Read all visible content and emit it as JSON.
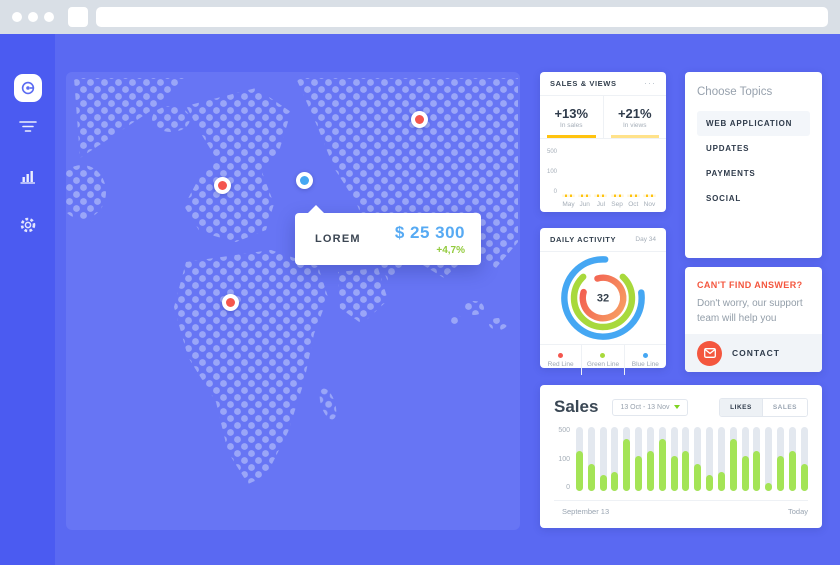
{
  "chrome": {
    "window_buttons": 3
  },
  "sidebar": {
    "items": [
      {
        "name": "dashboard",
        "active": true
      },
      {
        "name": "filter",
        "active": false
      },
      {
        "name": "stats",
        "active": false
      },
      {
        "name": "settings",
        "active": false
      }
    ],
    "color": "#4b5bf1",
    "active_icon_color": "#5b6bf2"
  },
  "map": {
    "background": "#6775f4",
    "dot_color": "#9aa6f8",
    "tooltip": {
      "label": "LOREM",
      "value": "$ 25 300",
      "delta": "+4,7%"
    },
    "markers": [
      {
        "color": "red"
      },
      {
        "color": "red"
      },
      {
        "color": "blue"
      },
      {
        "color": "red"
      }
    ]
  },
  "sales_views": {
    "title": "SALES & VIEWS",
    "menu_icon": "···",
    "stats": [
      {
        "value": "+13%",
        "label": "In sales",
        "bar_color": "#ffc30f"
      },
      {
        "value": "+21%",
        "label": "In views",
        "bar_color": "#ffe28a"
      }
    ]
  },
  "daily_activity": {
    "title": "DAILY ACTIVITY",
    "day": "Day 34",
    "legend": [
      {
        "label": "Red Line",
        "color": "#f4564e"
      },
      {
        "label": "Green Line",
        "color": "#a8d93c"
      },
      {
        "label": "Blue Line",
        "color": "#45a7f3"
      }
    ]
  },
  "topics": {
    "title": "Choose Topics",
    "items": [
      {
        "label": "WEB APPLICATION",
        "active": true
      },
      {
        "label": "UPDATES",
        "active": false
      },
      {
        "label": "PAYMENTS",
        "active": false
      },
      {
        "label": "SOCIAL",
        "active": false
      }
    ]
  },
  "support": {
    "title": "CAN'T FIND ANSWER?",
    "body": "Don't worry, our support team will help you",
    "contact_label": "CONTACT",
    "accent_color": "#f4563e"
  },
  "sales_panel": {
    "title": "Sales",
    "date_range": "13 Oct - 13 Nov",
    "toggle": [
      {
        "label": "LIKES",
        "active": true
      },
      {
        "label": "SALES",
        "active": false
      }
    ]
  },
  "chart_data": [
    {
      "type": "bar",
      "stacked": true,
      "title": "Sales & Views monthly",
      "categories": [
        "May",
        "Jun",
        "Jul",
        "Sep",
        "Oct",
        "Nov"
      ],
      "yticks": [
        "500",
        "100",
        "0"
      ],
      "series": [
        {
          "name": "sales",
          "color": "#ffc30f",
          "values_pct": [
            25,
            25,
            35,
            30,
            25,
            25
          ]
        },
        {
          "name": "views",
          "color": "#ffe28a",
          "values_pct": [
            30,
            40,
            55,
            50,
            30,
            35
          ]
        }
      ]
    },
    {
      "type": "donut",
      "title": "Daily Activity",
      "center_value": "32",
      "rings": [
        {
          "name": "Blue Line",
          "color": "#45a7f3",
          "percent": 78,
          "rotation": -8
        },
        {
          "name": "Green Line",
          "color": "#a8d93c",
          "percent": 76,
          "rotation": -47
        },
        {
          "name": "Red Line",
          "color": "#f2574f",
          "percent": 84,
          "rotation": -106,
          "gradient": [
            "#f7a264",
            "#f2574f"
          ]
        }
      ]
    },
    {
      "type": "bar",
      "title": "Sales timeline",
      "x_start_label": "September 13",
      "x_end_label": "Today",
      "yticks": [
        "500",
        "100",
        "0"
      ],
      "bar_color": "#a4e456",
      "track_color": "#e3e8ef",
      "values_pct": [
        62,
        42,
        25,
        30,
        82,
        55,
        62,
        82,
        55,
        62,
        42,
        25,
        30,
        82,
        55,
        62,
        12,
        55,
        62,
        42
      ]
    }
  ]
}
